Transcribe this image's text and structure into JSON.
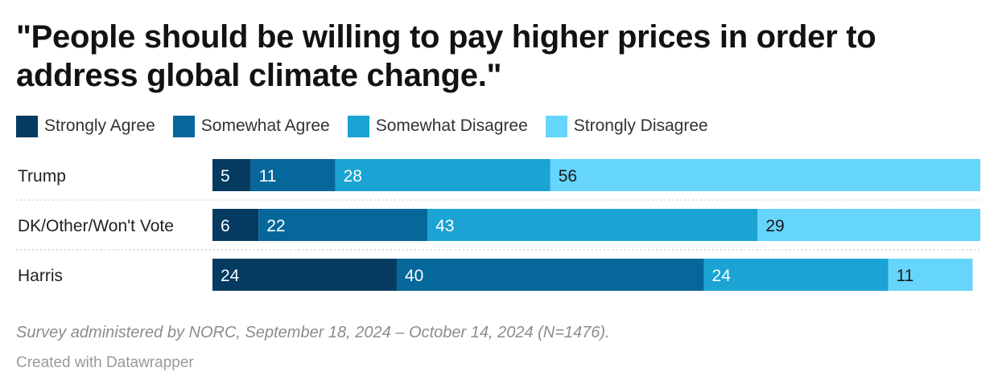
{
  "title": "\"People should be willing to pay higher prices in order to address global climate change.\"",
  "note": "Survey administered by NORC, September 18, 2024 – October 14, 2024 (N=1476).",
  "credit": "Created with Datawrapper",
  "chart_data": {
    "type": "bar",
    "orientation": "horizontal",
    "stacked": true,
    "grid": false,
    "legend_position": "top-left",
    "categories": [
      "Trump",
      "DK/Other/Won't Vote",
      "Harris"
    ],
    "series": [
      {
        "name": "Strongly Agree",
        "color": "#053a61",
        "values": [
          5,
          6,
          24
        ]
      },
      {
        "name": "Somewhat Agree",
        "color": "#05679a",
        "values": [
          11,
          22,
          40
        ]
      },
      {
        "name": "Somewhat Disagree",
        "color": "#1aa3d3",
        "values": [
          28,
          43,
          24
        ]
      },
      {
        "name": "Strongly Disagree",
        "color": "#66d5fc",
        "values": [
          56,
          29,
          11
        ]
      }
    ],
    "xlim": [
      0,
      100
    ]
  }
}
